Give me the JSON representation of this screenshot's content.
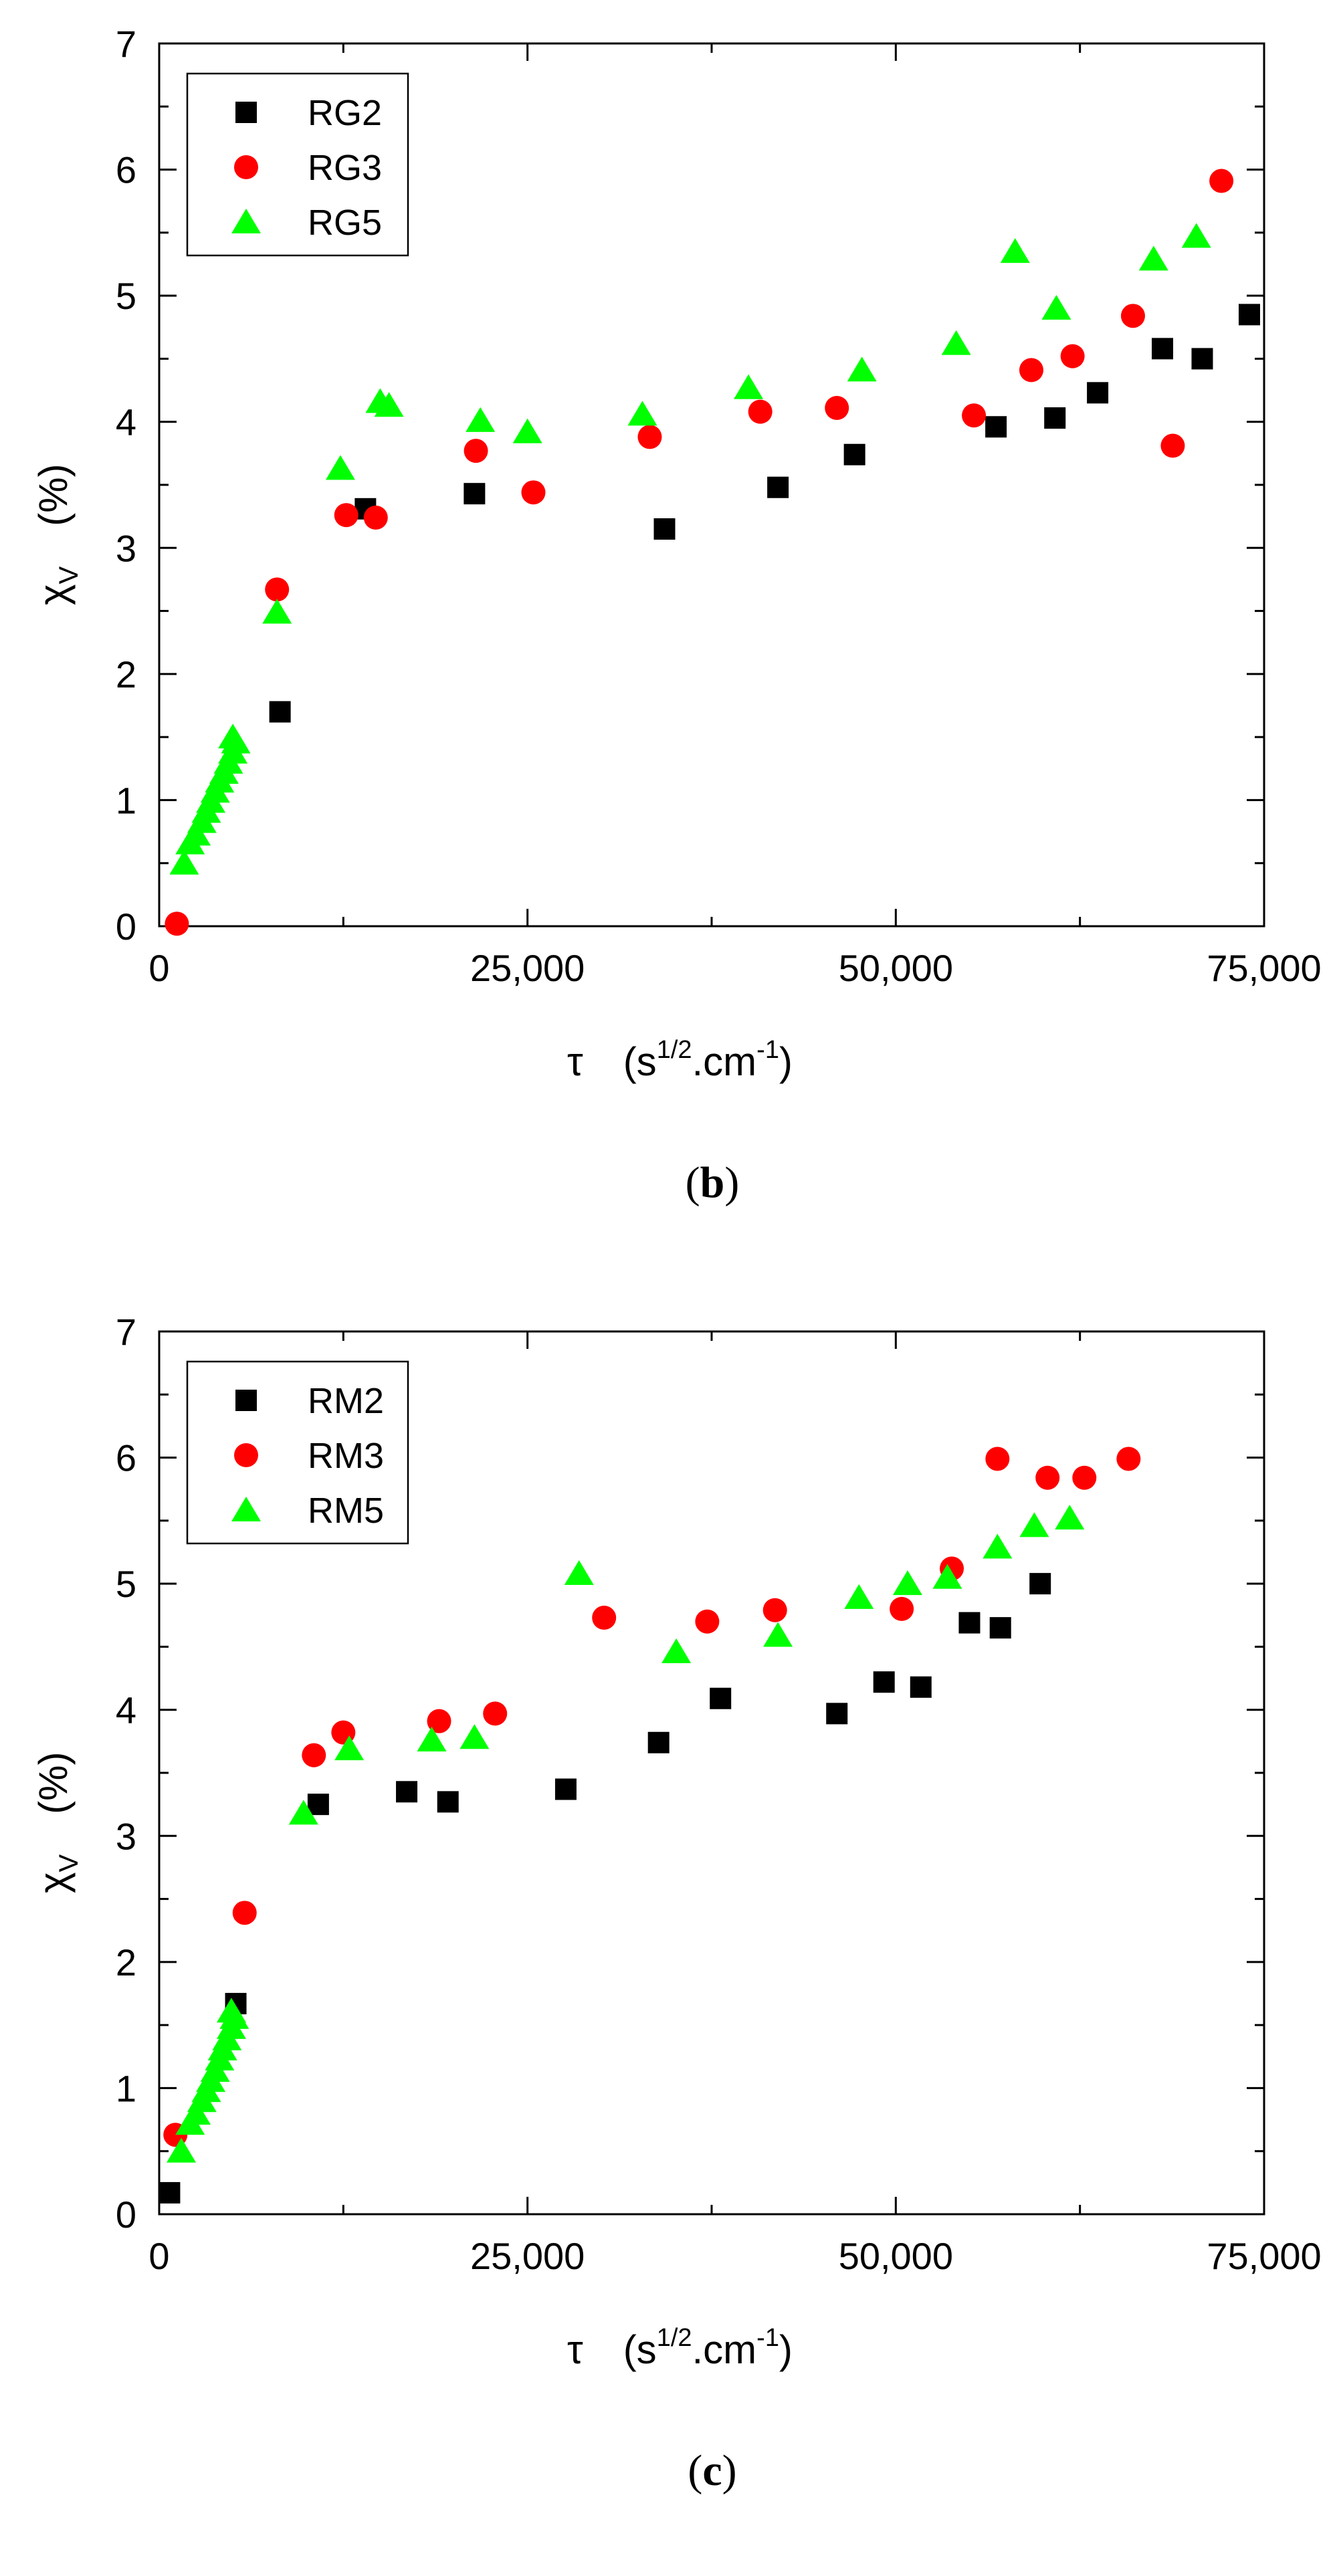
{
  "chart_data": [
    {
      "type": "scatter",
      "panel_label_open": "(",
      "panel_label_letter": "b",
      "panel_label_close": ")",
      "xlabel_symbol": "τ",
      "xlabel_unit_open": "(s",
      "xlabel_unit_exp1": "1/2",
      "xlabel_unit_mid": ".cm",
      "xlabel_unit_exp2": "-1",
      "xlabel_unit_close": ")",
      "ylabel_symbol": "χ",
      "ylabel_sub": "V",
      "ylabel_unit": "(%)",
      "xlim": [
        0,
        75000
      ],
      "ylim": [
        0,
        7
      ],
      "x_ticks": [
        0,
        25000,
        50000,
        75000
      ],
      "x_tick_labels": [
        "0",
        "25,000",
        "50,000",
        "75,000"
      ],
      "y_ticks": [
        0,
        1,
        2,
        3,
        4,
        5,
        6,
        7
      ],
      "y_tick_labels": [
        "0",
        "1",
        "2",
        "3",
        "4",
        "5",
        "6",
        "7"
      ],
      "legend_position": "top-left",
      "series": [
        {
          "name": "RG2",
          "marker": "square",
          "color": "#000000",
          "points": [
            [
              8200,
              1.7
            ],
            [
              14000,
              3.31
            ],
            [
              21400,
              3.43
            ],
            [
              34300,
              3.15
            ],
            [
              42000,
              3.48
            ],
            [
              47200,
              3.74
            ],
            [
              56800,
              3.96
            ],
            [
              60800,
              4.03
            ],
            [
              63700,
              4.23
            ],
            [
              68100,
              4.58
            ],
            [
              70800,
              4.5
            ],
            [
              74000,
              4.85
            ]
          ]
        },
        {
          "name": "RG3",
          "marker": "circle",
          "color": "#ff0000",
          "points": [
            [
              1200,
              0.02
            ],
            [
              8000,
              2.67
            ],
            [
              12700,
              3.26
            ],
            [
              14700,
              3.24
            ],
            [
              21500,
              3.77
            ],
            [
              25400,
              3.44
            ],
            [
              33300,
              3.88
            ],
            [
              40800,
              4.08
            ],
            [
              46000,
              4.11
            ],
            [
              55300,
              4.05
            ],
            [
              59200,
              4.41
            ],
            [
              62000,
              4.52
            ],
            [
              66100,
              4.84
            ],
            [
              68800,
              3.81
            ],
            [
              72100,
              5.91
            ]
          ]
        },
        {
          "name": "RG5",
          "marker": "triangle",
          "color": "#00ff00",
          "points": [
            [
              1700,
              0.5
            ],
            [
              2100,
              0.66
            ],
            [
              2500,
              0.73
            ],
            [
              2900,
              0.83
            ],
            [
              3200,
              0.91
            ],
            [
              3500,
              0.99
            ],
            [
              3800,
              1.07
            ],
            [
              4100,
              1.15
            ],
            [
              4400,
              1.22
            ],
            [
              4700,
              1.3
            ],
            [
              5000,
              1.38
            ],
            [
              5200,
              1.46
            ],
            [
              5000,
              1.5
            ],
            [
              8000,
              2.49
            ],
            [
              12300,
              3.63
            ],
            [
              15000,
              4.16
            ],
            [
              15600,
              4.13
            ],
            [
              21800,
              4.01
            ],
            [
              25000,
              3.92
            ],
            [
              32800,
              4.06
            ],
            [
              40000,
              4.27
            ],
            [
              47700,
              4.41
            ],
            [
              54100,
              4.62
            ],
            [
              58100,
              5.35
            ],
            [
              60900,
              4.9
            ],
            [
              67500,
              5.29
            ],
            [
              70400,
              5.47
            ]
          ]
        }
      ]
    },
    {
      "type": "scatter",
      "panel_label_open": "(",
      "panel_label_letter": "c",
      "panel_label_close": ")",
      "xlabel_symbol": "τ",
      "xlabel_unit_open": "(s",
      "xlabel_unit_exp1": "1/2",
      "xlabel_unit_mid": ".cm",
      "xlabel_unit_exp2": "-1",
      "xlabel_unit_close": ")",
      "ylabel_symbol": "χ",
      "ylabel_sub": "V",
      "ylabel_unit": "(%)",
      "xlim": [
        0,
        75000
      ],
      "ylim": [
        0,
        7
      ],
      "x_ticks": [
        0,
        25000,
        50000,
        75000
      ],
      "x_tick_labels": [
        "0",
        "25,000",
        "50,000",
        "75,000"
      ],
      "y_ticks": [
        0,
        1,
        2,
        3,
        4,
        5,
        6,
        7
      ],
      "y_tick_labels": [
        "0",
        "1",
        "2",
        "3",
        "4",
        "5",
        "6",
        "7"
      ],
      "legend_position": "top-left",
      "series": [
        {
          "name": "RM2",
          "marker": "square",
          "color": "#000000",
          "points": [
            [
              700,
              0.17
            ],
            [
              5200,
              1.67
            ],
            [
              10800,
              3.25
            ],
            [
              16800,
              3.35
            ],
            [
              19600,
              3.27
            ],
            [
              27600,
              3.37
            ],
            [
              33900,
              3.74
            ],
            [
              38100,
              4.09
            ],
            [
              46000,
              3.97
            ],
            [
              49200,
              4.22
            ],
            [
              51700,
              4.18
            ],
            [
              55000,
              4.69
            ],
            [
              57100,
              4.65
            ],
            [
              59800,
              5.0
            ]
          ]
        },
        {
          "name": "RM3",
          "marker": "circle",
          "color": "#ff0000",
          "points": [
            [
              1100,
              0.63
            ],
            [
              5800,
              2.39
            ],
            [
              10500,
              3.64
            ],
            [
              12500,
              3.82
            ],
            [
              19000,
              3.91
            ],
            [
              22800,
              3.97
            ],
            [
              30200,
              4.73
            ],
            [
              37200,
              4.7
            ],
            [
              41800,
              4.79
            ],
            [
              50400,
              4.8
            ],
            [
              53800,
              5.12
            ],
            [
              56900,
              5.99
            ],
            [
              60300,
              5.84
            ],
            [
              62800,
              5.84
            ],
            [
              65800,
              5.99
            ]
          ]
        },
        {
          "name": "RM5",
          "marker": "triangle",
          "color": "#00ff00",
          "points": [
            [
              1500,
              0.5
            ],
            [
              2100,
              0.72
            ],
            [
              2500,
              0.8
            ],
            [
              2900,
              0.9
            ],
            [
              3200,
              0.98
            ],
            [
              3500,
              1.06
            ],
            [
              3800,
              1.14
            ],
            [
              4100,
              1.23
            ],
            [
              4300,
              1.31
            ],
            [
              4600,
              1.39
            ],
            [
              4900,
              1.48
            ],
            [
              5100,
              1.56
            ],
            [
              4900,
              1.61
            ],
            [
              9800,
              3.18
            ],
            [
              12900,
              3.69
            ],
            [
              18500,
              3.76
            ],
            [
              21400,
              3.78
            ],
            [
              28500,
              5.08
            ],
            [
              35100,
              4.46
            ],
            [
              42000,
              4.59
            ],
            [
              47500,
              4.89
            ],
            [
              50800,
              5.0
            ],
            [
              53500,
              5.05
            ],
            [
              56900,
              5.29
            ],
            [
              59400,
              5.46
            ],
            [
              61800,
              5.52
            ]
          ]
        }
      ]
    }
  ]
}
